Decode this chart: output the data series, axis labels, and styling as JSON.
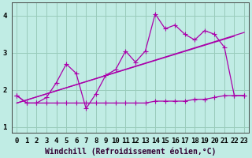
{
  "xlabel": "Windchill (Refroidissement éolien,°C)",
  "bg_color": "#c0ece4",
  "line_color": "#aa00aa",
  "grid_color": "#99ccbb",
  "x_hours": [
    0,
    1,
    2,
    3,
    4,
    5,
    6,
    7,
    8,
    9,
    10,
    11,
    12,
    13,
    14,
    15,
    16,
    17,
    18,
    19,
    20,
    21,
    22,
    23
  ],
  "flat_line_y": [
    1.85,
    1.65,
    1.65,
    1.65,
    1.65,
    1.65,
    1.65,
    1.65,
    1.65,
    1.65,
    1.65,
    1.65,
    1.65,
    1.65,
    1.7,
    1.7,
    1.7,
    1.7,
    1.75,
    1.75,
    1.8,
    1.85,
    1.85,
    1.85
  ],
  "jagged_line_y": [
    1.85,
    1.65,
    1.65,
    1.8,
    2.2,
    2.7,
    2.45,
    1.5,
    1.9,
    2.4,
    2.55,
    3.05,
    2.75,
    3.05,
    4.05,
    3.65,
    3.75,
    3.5,
    3.35,
    3.6,
    3.5,
    3.15,
    1.85,
    1.85
  ],
  "trend1_x": [
    0,
    23
  ],
  "trend1_y": [
    1.65,
    3.55
  ],
  "trend2_x": [
    0,
    22
  ],
  "trend2_y": [
    1.65,
    3.45
  ],
  "ylim": [
    0.85,
    4.35
  ],
  "xlim": [
    -0.5,
    23.5
  ],
  "yticks": [
    1,
    2,
    3,
    4
  ],
  "xticks": [
    0,
    1,
    2,
    3,
    4,
    5,
    6,
    7,
    8,
    9,
    10,
    11,
    12,
    13,
    14,
    15,
    16,
    17,
    18,
    19,
    20,
    21,
    22,
    23
  ],
  "xlabel_fontsize": 7,
  "tick_fontsize": 6.5,
  "markersize": 4,
  "linewidth": 0.9
}
